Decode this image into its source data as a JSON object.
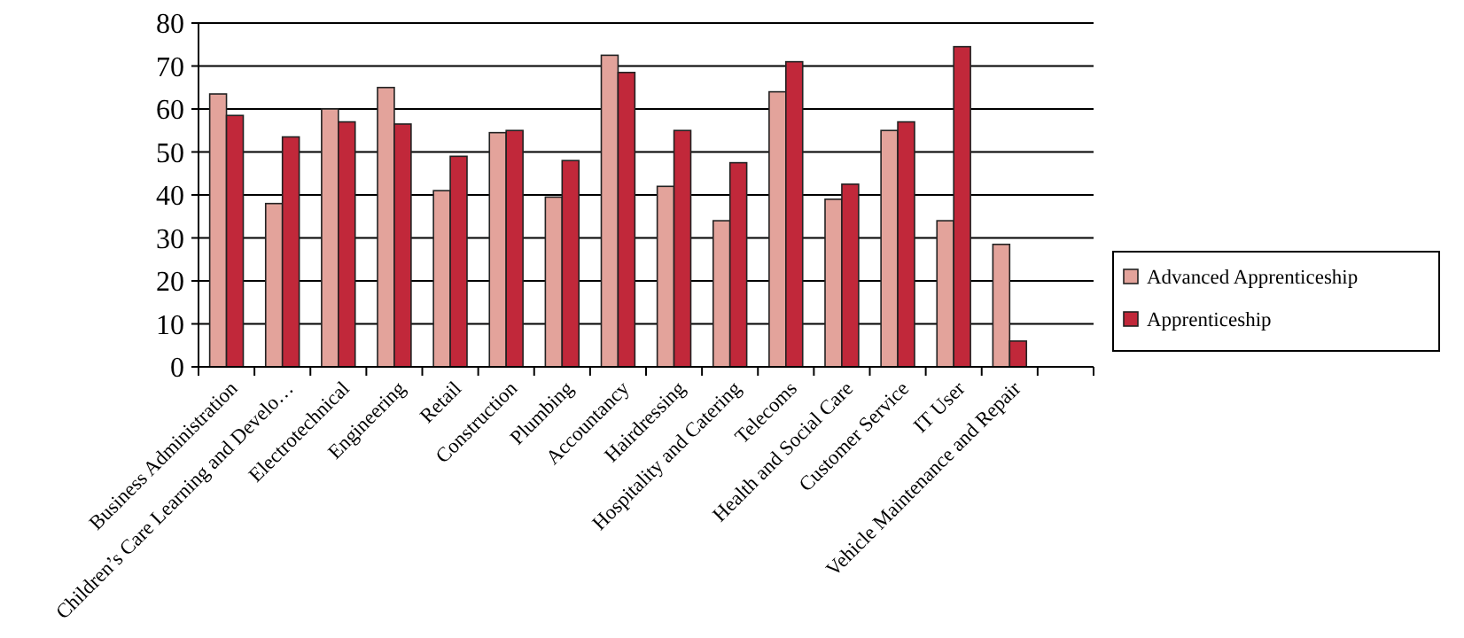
{
  "chart_data": {
    "type": "bar",
    "categories": [
      "Business Administration",
      "Children’s Care Learning and Develo…",
      "Electrotechnical",
      "Engineering",
      "Retail",
      "Construction",
      "Plumbing",
      "Accountancy",
      "Hairdressing",
      "Hospitality and Catering",
      "Telecoms",
      "Health and Social Care",
      "Customer Service",
      "IT User",
      "Vehicle Maintenance and Repair",
      null
    ],
    "series": [
      {
        "name": "Advanced Apprenticeship",
        "color": "#e3a39b",
        "values": [
          63.5,
          38,
          60,
          65,
          41,
          54.5,
          39.5,
          72.5,
          42,
          34,
          64,
          39,
          55,
          34,
          28.5,
          null
        ]
      },
      {
        "name": "Apprenticeship",
        "color": "#c1283a",
        "values": [
          58.5,
          53.5,
          57,
          56.5,
          49,
          55,
          48,
          68.5,
          55,
          47.5,
          71,
          42.5,
          57,
          74.5,
          6,
          null
        ]
      }
    ],
    "ylim": [
      0,
      80
    ],
    "yticks": [
      0,
      10,
      20,
      30,
      40,
      50,
      60,
      70,
      80
    ],
    "grid": "y",
    "legend": "right"
  }
}
